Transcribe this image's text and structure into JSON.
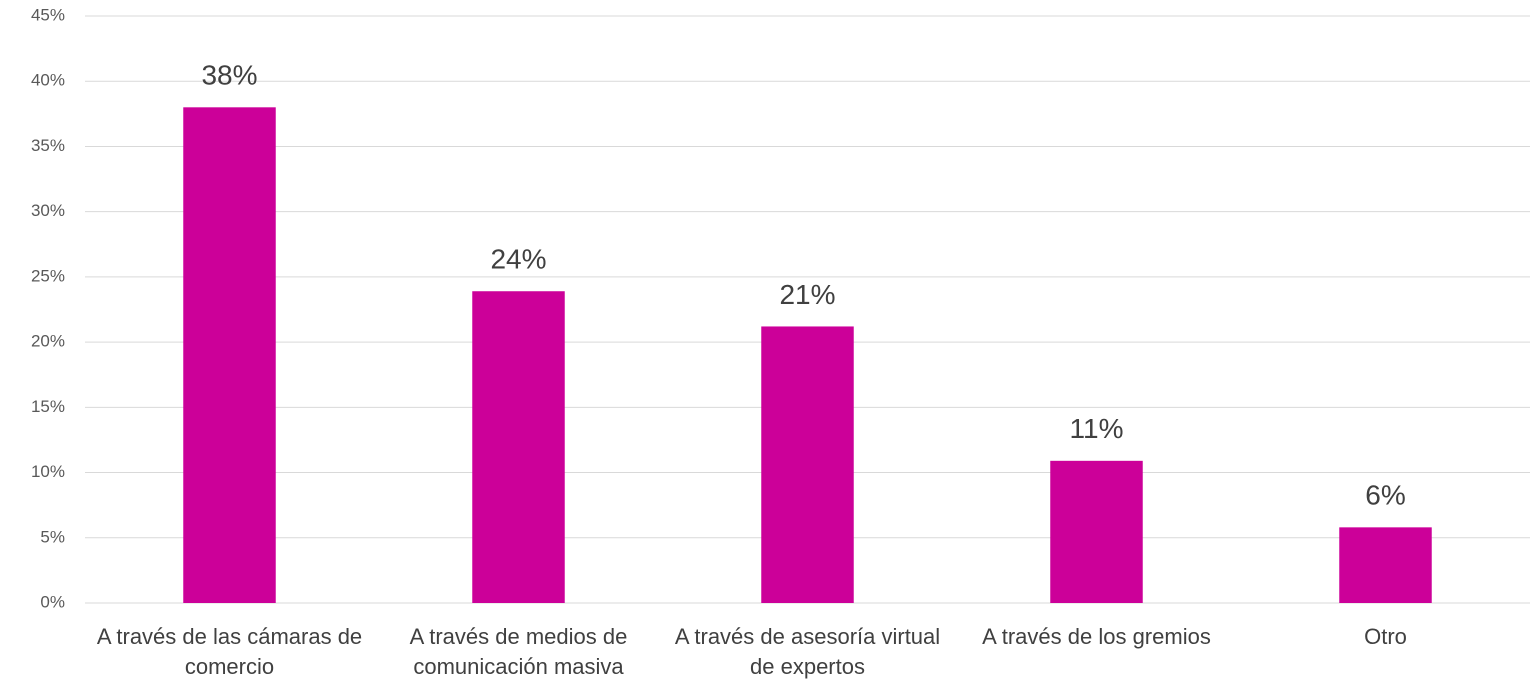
{
  "chart_data": {
    "type": "bar",
    "categories": [
      "A través de las cámaras de comercio",
      "A través de medios de comunicación masiva",
      "A través de asesoría virtual de expertos",
      "A través de los gremios",
      "Otro"
    ],
    "values": [
      38.0,
      23.9,
      21.2,
      10.9,
      5.8
    ],
    "value_labels": [
      "38%",
      "24%",
      "21%",
      "11%",
      "6%"
    ],
    "color": "#cc0099",
    "ylim": [
      0,
      45
    ],
    "yticks": [
      {
        "value": 0,
        "label": "0%"
      },
      {
        "value": 5,
        "label": "5%"
      },
      {
        "value": 10,
        "label": "10%"
      },
      {
        "value": 15,
        "label": "15%"
      },
      {
        "value": 20,
        "label": "20%"
      },
      {
        "value": 25,
        "label": "25%"
      },
      {
        "value": 30,
        "label": "30%"
      },
      {
        "value": 35,
        "label": "35%"
      },
      {
        "value": 40,
        "label": "40%"
      },
      {
        "value": 45,
        "label": "45%"
      }
    ],
    "grid": true
  }
}
